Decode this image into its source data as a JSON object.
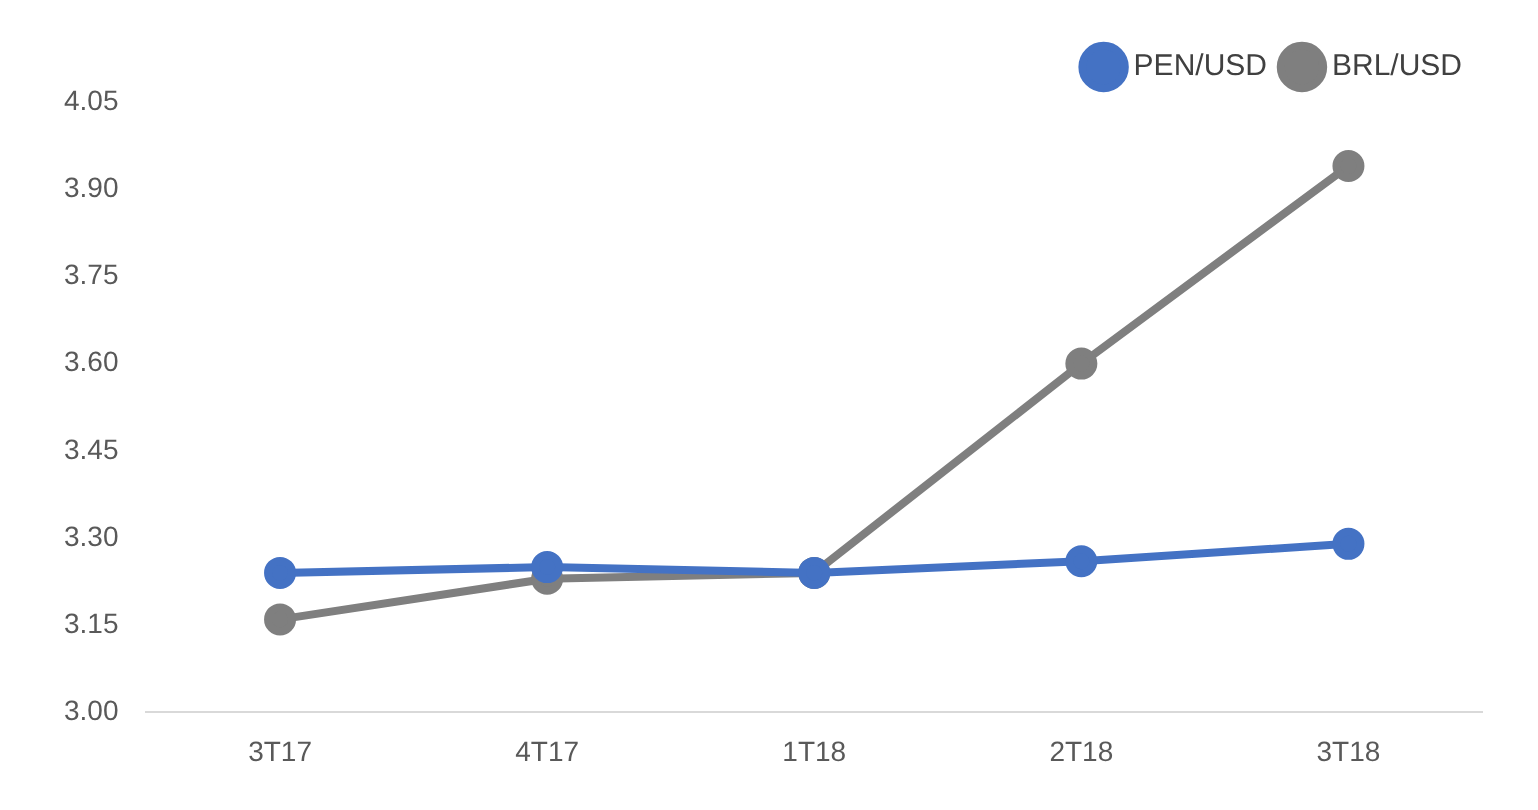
{
  "chart_data": {
    "type": "line",
    "categories": [
      "3T17",
      "4T17",
      "1T18",
      "2T18",
      "3T18"
    ],
    "series": [
      {
        "name": "PEN/USD",
        "color": "#4472c4",
        "values": [
          3.24,
          3.25,
          3.24,
          3.26,
          3.29
        ]
      },
      {
        "name": "BRL/USD",
        "color": "#7f7f7f",
        "values": [
          3.16,
          3.23,
          3.24,
          3.6,
          3.94
        ]
      }
    ],
    "ylim": [
      3.0,
      4.05
    ],
    "yticks": [
      {
        "value": 3.0,
        "label": "3.00"
      },
      {
        "value": 3.15,
        "label": "3.15"
      },
      {
        "value": 3.3,
        "label": "3.30"
      },
      {
        "value": 3.45,
        "label": "3.45"
      },
      {
        "value": 3.6,
        "label": "3.60"
      },
      {
        "value": 3.75,
        "label": "3.75"
      },
      {
        "value": 3.9,
        "label": "3.90"
      },
      {
        "value": 4.05,
        "label": "4.05"
      }
    ],
    "grid": false,
    "legend": "top right",
    "marker": "circle",
    "line_style": "solid"
  }
}
